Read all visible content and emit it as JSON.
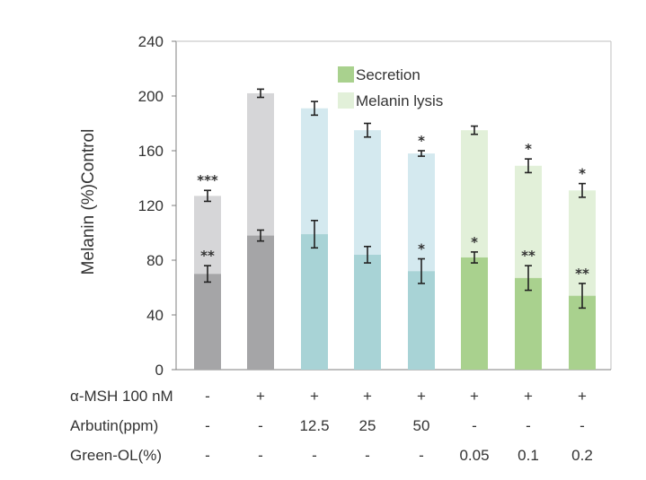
{
  "chart_data": {
    "type": "bar",
    "stacked": true,
    "ylabel": "Melanin (%)Control",
    "ylim": [
      0,
      240
    ],
    "yticks": [
      0,
      40,
      80,
      120,
      160,
      200,
      240
    ],
    "legend": {
      "placement": "top-center",
      "entries": [
        {
          "label": "Secretion",
          "color": "#a9d18e"
        },
        {
          "label": "Melanin lysis",
          "color": "#e2f0d9"
        }
      ]
    },
    "bars": [
      {
        "secretion": 70,
        "secretion_err": 6,
        "total": 127,
        "total_err": 4,
        "sig_secretion": "**",
        "sig_total": "***",
        "bottom_color": "#a5a5a7",
        "top_color": "#d6d6d8"
      },
      {
        "secretion": 98,
        "secretion_err": 4,
        "total": 202,
        "total_err": 3,
        "sig_secretion": "",
        "sig_total": "",
        "bottom_color": "#a5a5a7",
        "top_color": "#d6d6d8"
      },
      {
        "secretion": 99,
        "secretion_err": 10,
        "total": 191,
        "total_err": 5,
        "sig_secretion": "",
        "sig_total": "",
        "bottom_color": "#a8d3d6",
        "top_color": "#d4e9ef"
      },
      {
        "secretion": 84,
        "secretion_err": 6,
        "total": 175,
        "total_err": 5,
        "sig_secretion": "",
        "sig_total": "",
        "bottom_color": "#a8d3d6",
        "top_color": "#d4e9ef"
      },
      {
        "secretion": 72,
        "secretion_err": 9,
        "total": 158,
        "total_err": 2,
        "sig_secretion": "*",
        "sig_total": "*",
        "bottom_color": "#a8d3d6",
        "top_color": "#d4e9ef"
      },
      {
        "secretion": 82,
        "secretion_err": 4,
        "total": 175,
        "total_err": 3,
        "sig_secretion": "*",
        "sig_total": "",
        "bottom_color": "#a9d18e",
        "top_color": "#e2f0d9"
      },
      {
        "secretion": 67,
        "secretion_err": 9,
        "total": 149,
        "total_err": 5,
        "sig_secretion": "**",
        "sig_total": "*",
        "bottom_color": "#a9d18e",
        "top_color": "#e2f0d9"
      },
      {
        "secretion": 54,
        "secretion_err": 9,
        "total": 131,
        "total_err": 5,
        "sig_secretion": "**",
        "sig_total": "*",
        "bottom_color": "#a9d18e",
        "top_color": "#e2f0d9"
      }
    ],
    "conditions": [
      {
        "label": "α-MSH 100 nM",
        "values": [
          "-",
          "+",
          "+",
          "+",
          "+",
          "+",
          "+",
          "+"
        ]
      },
      {
        "label": "Arbutin(ppm)",
        "values": [
          "-",
          "-",
          "12.5",
          "25",
          "50",
          "-",
          "-",
          "-"
        ]
      },
      {
        "label": "Green-OL(%)",
        "values": [
          "-",
          "-",
          "-",
          "-",
          "-",
          "0.05",
          "0.1",
          "0.2"
        ]
      }
    ]
  }
}
